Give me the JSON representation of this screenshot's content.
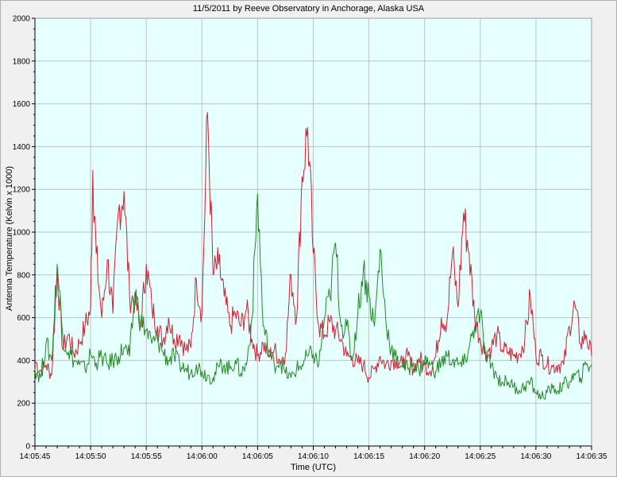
{
  "chart_data": {
    "type": "line",
    "title": "11/5/2011  by  Reeve Observatory  in  Anchorage, Alaska  USA",
    "xlabel": "Time (UTC)",
    "ylabel": "Antenna Temperature (Kelvin x 1000)",
    "xlim": [
      "14:05:45",
      "14:06:35"
    ],
    "ylim": [
      0,
      2000
    ],
    "grid": true,
    "x_ticks": [
      "14:05:45",
      "14:05:50",
      "14:05:55",
      "14:06:00",
      "14:06:05",
      "14:06:10",
      "14:06:15",
      "14:06:20",
      "14:06:25",
      "14:06:30",
      "14:06:35"
    ],
    "y_ticks": [
      0,
      200,
      400,
      600,
      800,
      1000,
      1200,
      1400,
      1600,
      1800,
      2000
    ],
    "series": [
      {
        "color": "#cc2233",
        "x": [
          "14:05:45",
          "14:05:45.5",
          "14:05:46",
          "14:05:46.5",
          "14:05:47",
          "14:05:47.5",
          "14:05:48",
          "14:05:48.5",
          "14:05:49",
          "14:05:49.5",
          "14:05:50",
          "14:05:50.2",
          "14:05:50.5",
          "14:05:51",
          "14:05:51.5",
          "14:05:52",
          "14:05:52.5",
          "14:05:53",
          "14:05:53.5",
          "14:05:54",
          "14:05:54.5",
          "14:05:55",
          "14:05:55.5",
          "14:05:56",
          "14:05:56.5",
          "14:05:57",
          "14:05:57.5",
          "14:05:58",
          "14:05:58.5",
          "14:05:59",
          "14:05:59.5",
          "14:06:00",
          "14:06:00.5",
          "14:06:01",
          "14:06:01.5",
          "14:06:02",
          "14:06:02.5",
          "14:06:03",
          "14:06:03.5",
          "14:06:04",
          "14:06:04.5",
          "14:06:05",
          "14:06:05.5",
          "14:06:06",
          "14:06:06.5",
          "14:06:07",
          "14:06:07.5",
          "14:06:08",
          "14:06:08.5",
          "14:06:09",
          "14:06:09.5",
          "14:06:10",
          "14:06:10.5",
          "14:06:11",
          "14:06:11.5",
          "14:06:12",
          "14:06:12.5",
          "14:06:13",
          "14:06:13.5",
          "14:06:14",
          "14:06:14.5",
          "14:06:15",
          "14:06:15.5",
          "14:06:16",
          "14:06:16.5",
          "14:06:17",
          "14:06:17.5",
          "14:06:18",
          "14:06:18.5",
          "14:06:19",
          "14:06:19.5",
          "14:06:20",
          "14:06:20.5",
          "14:06:21",
          "14:06:21.5",
          "14:06:22",
          "14:06:22.5",
          "14:06:23",
          "14:06:23.5",
          "14:06:24",
          "14:06:24.5",
          "14:06:25",
          "14:06:25.5",
          "14:06:26",
          "14:06:26.5",
          "14:06:27",
          "14:06:27.5",
          "14:06:28",
          "14:06:28.5",
          "14:06:29",
          "14:06:29.5",
          "14:06:30",
          "14:06:30.5",
          "14:06:31",
          "14:06:31.5",
          "14:06:32",
          "14:06:32.5",
          "14:06:33",
          "14:06:33.5",
          "14:06:34",
          "14:06:34.5",
          "14:06:35"
        ],
        "values": [
          400,
          350,
          380,
          330,
          830,
          450,
          520,
          430,
          480,
          560,
          640,
          1290,
          900,
          600,
          870,
          620,
          1100,
          1190,
          700,
          680,
          560,
          850,
          650,
          560,
          490,
          600,
          500,
          520,
          450,
          460,
          780,
          620,
          1560,
          800,
          850,
          700,
          560,
          620,
          560,
          640,
          500,
          420,
          480,
          420,
          450,
          400,
          430,
          800,
          600,
          1260,
          1490,
          900,
          560,
          520,
          580,
          540,
          500,
          420,
          410,
          390,
          380,
          320,
          360,
          420,
          380,
          400,
          400,
          380,
          420,
          360,
          410,
          380,
          350,
          420,
          600,
          580,
          900,
          650,
          1090,
          900,
          600,
          500,
          440,
          460,
          520,
          450,
          440,
          420,
          430,
          500,
          700,
          420,
          420,
          380,
          370,
          380,
          380,
          560,
          660,
          480,
          520,
          420
        ]
      },
      {
        "color": "#228822",
        "x": [
          "14:05:45",
          "14:05:45.5",
          "14:05:46",
          "14:05:46.5",
          "14:05:47",
          "14:05:47.5",
          "14:05:48",
          "14:05:48.5",
          "14:05:49",
          "14:05:49.5",
          "14:05:50",
          "14:05:50.5",
          "14:05:51",
          "14:05:51.5",
          "14:05:52",
          "14:05:52.5",
          "14:05:53",
          "14:05:53.5",
          "14:05:54",
          "14:05:54.5",
          "14:05:55",
          "14:05:55.5",
          "14:05:56",
          "14:05:56.5",
          "14:05:57",
          "14:05:57.5",
          "14:05:58",
          "14:05:58.5",
          "14:05:59",
          "14:05:59.5",
          "14:06:00",
          "14:06:00.5",
          "14:06:01",
          "14:06:01.5",
          "14:06:02",
          "14:06:02.5",
          "14:06:03",
          "14:06:03.5",
          "14:06:04",
          "14:06:04.5",
          "14:06:05",
          "14:06:05.5",
          "14:06:06",
          "14:06:06.5",
          "14:06:07",
          "14:06:07.5",
          "14:06:08",
          "14:06:08.5",
          "14:06:09",
          "14:06:09.5",
          "14:06:10",
          "14:06:10.5",
          "14:06:11",
          "14:06:11.5",
          "14:06:12",
          "14:06:12.5",
          "14:06:13",
          "14:06:13.5",
          "14:06:14",
          "14:06:14.5",
          "14:06:15",
          "14:06:15.5",
          "14:06:16",
          "14:06:16.5",
          "14:06:17",
          "14:06:17.5",
          "14:06:18",
          "14:06:18.5",
          "14:06:19",
          "14:06:19.5",
          "14:06:20",
          "14:06:20.5",
          "14:06:21",
          "14:06:21.5",
          "14:06:22",
          "14:06:22.5",
          "14:06:23",
          "14:06:23.5",
          "14:06:24",
          "14:06:24.5",
          "14:06:25",
          "14:06:25.5",
          "14:06:26",
          "14:06:26.5",
          "14:06:27",
          "14:06:27.5",
          "14:06:28",
          "14:06:28.5",
          "14:06:29",
          "14:06:29.5",
          "14:06:30",
          "14:06:30.5",
          "14:06:31",
          "14:06:31.5",
          "14:06:32",
          "14:06:32.5",
          "14:06:33",
          "14:06:33.5",
          "14:06:34",
          "14:06:34.5",
          "14:06:35"
        ],
        "values": [
          360,
          320,
          480,
          400,
          850,
          520,
          440,
          400,
          380,
          360,
          430,
          390,
          420,
          380,
          400,
          420,
          460,
          420,
          720,
          580,
          540,
          480,
          500,
          440,
          400,
          420,
          380,
          360,
          340,
          380,
          350,
          330,
          320,
          370,
          380,
          360,
          400,
          340,
          380,
          600,
          1180,
          560,
          450,
          380,
          400,
          340,
          320,
          360,
          380,
          420,
          430,
          380,
          600,
          700,
          950,
          560,
          560,
          400,
          620,
          830,
          700,
          560,
          920,
          600,
          450,
          400,
          380,
          360,
          390,
          350,
          400,
          380,
          350,
          390,
          420,
          400,
          380,
          380,
          460,
          560,
          620,
          400,
          380,
          320,
          300,
          300,
          280,
          260,
          280,
          300,
          250,
          230,
          250,
          270,
          260,
          290,
          300,
          330,
          320,
          380,
          380
        ]
      }
    ]
  }
}
